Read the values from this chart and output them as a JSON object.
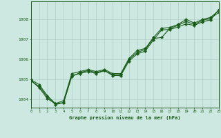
{
  "title": "Graphe pression niveau de la mer (hPa)",
  "background_color": "#cce8e0",
  "grid_color": "#b0ccc8",
  "line_color": "#1a5c1a",
  "xlim": [
    0,
    23
  ],
  "ylim": [
    1003.6,
    1008.9
  ],
  "xlabel_ticks": [
    0,
    1,
    2,
    3,
    4,
    5,
    6,
    7,
    8,
    9,
    10,
    11,
    12,
    13,
    14,
    15,
    16,
    17,
    18,
    19,
    20,
    21,
    22,
    23
  ],
  "yticks": [
    1004,
    1005,
    1006,
    1007,
    1008
  ],
  "line1": [
    1004.95,
    1004.65,
    1004.15,
    1003.75,
    1003.85,
    1005.15,
    1005.35,
    1005.45,
    1005.35,
    1005.45,
    1005.25,
    1005.25,
    1006.0,
    1006.35,
    1006.5,
    1007.05,
    1007.1,
    1007.55,
    1007.7,
    1007.9,
    1007.75,
    1007.95,
    1008.05,
    1008.35
  ],
  "line2": [
    1005.0,
    1004.75,
    1004.2,
    1003.8,
    1003.95,
    1005.3,
    1005.4,
    1005.5,
    1005.4,
    1005.5,
    1005.3,
    1005.3,
    1006.05,
    1006.45,
    1006.55,
    1007.1,
    1007.55,
    1007.6,
    1007.75,
    1008.0,
    1007.82,
    1008.0,
    1008.1,
    1008.45
  ],
  "line3": [
    1004.95,
    1004.6,
    1004.05,
    1003.8,
    1003.85,
    1005.2,
    1005.3,
    1005.4,
    1005.3,
    1005.45,
    1005.2,
    1005.2,
    1005.92,
    1006.28,
    1006.42,
    1006.98,
    1007.48,
    1007.5,
    1007.62,
    1007.78,
    1007.7,
    1007.88,
    1007.98,
    1008.5
  ]
}
